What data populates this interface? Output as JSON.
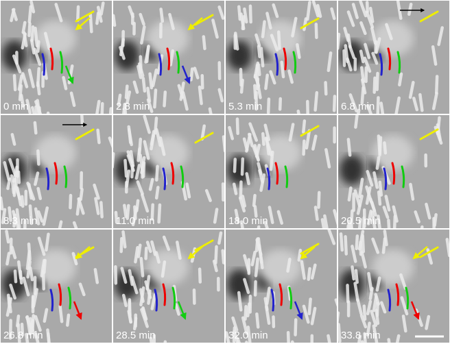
{
  "panels": [
    {
      "label": "0 min"
    },
    {
      "label": "2.8 min"
    },
    {
      "label": "5.3 min"
    },
    {
      "label": "6.8 min"
    },
    {
      "label": "8.3 min"
    },
    {
      "label": "11.0 min"
    },
    {
      "label": "18.0 min"
    },
    {
      "label": "20.5 min"
    },
    {
      "label": "26.8 min"
    },
    {
      "label": "28.5 min"
    },
    {
      "label": "32.0 min"
    },
    {
      "label": "33.8 min"
    }
  ]
}
